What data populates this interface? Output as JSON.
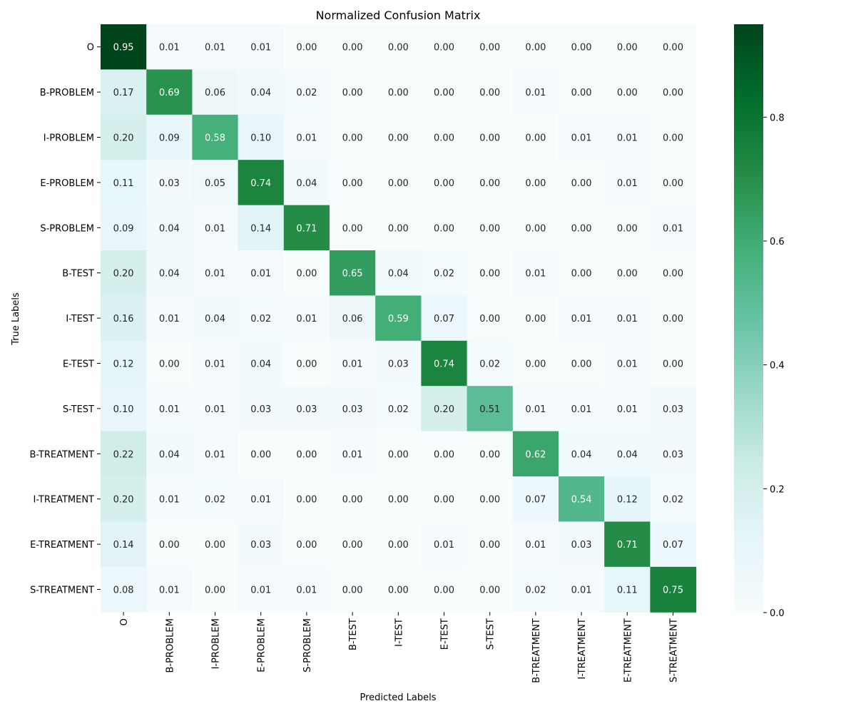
{
  "chart_data": {
    "type": "heatmap",
    "title": "Normalized Confusion Matrix",
    "xlabel": "Predicted Labels",
    "ylabel": "True Labels",
    "row_labels": [
      "O",
      "B-PROBLEM",
      "I-PROBLEM",
      "E-PROBLEM",
      "S-PROBLEM",
      "B-TEST",
      "I-TEST",
      "E-TEST",
      "S-TEST",
      "B-TREATMENT",
      "I-TREATMENT",
      "E-TREATMENT",
      "S-TREATMENT"
    ],
    "col_labels": [
      "O",
      "B-PROBLEM",
      "I-PROBLEM",
      "E-PROBLEM",
      "S-PROBLEM",
      "B-TEST",
      "I-TEST",
      "E-TEST",
      "S-TEST",
      "B-TREATMENT",
      "I-TREATMENT",
      "E-TREATMENT",
      "S-TREATMENT"
    ],
    "values": [
      [
        0.95,
        0.01,
        0.01,
        0.01,
        0.0,
        0.0,
        0.0,
        0.0,
        0.0,
        0.0,
        0.0,
        0.0,
        0.0
      ],
      [
        0.17,
        0.69,
        0.06,
        0.04,
        0.02,
        0.0,
        0.0,
        0.0,
        0.0,
        0.01,
        0.0,
        0.0,
        0.0
      ],
      [
        0.2,
        0.09,
        0.58,
        0.1,
        0.01,
        0.0,
        0.0,
        0.0,
        0.0,
        0.0,
        0.01,
        0.01,
        0.0
      ],
      [
        0.11,
        0.03,
        0.05,
        0.74,
        0.04,
        0.0,
        0.0,
        0.0,
        0.0,
        0.0,
        0.0,
        0.01,
        0.0
      ],
      [
        0.09,
        0.04,
        0.01,
        0.14,
        0.71,
        0.0,
        0.0,
        0.0,
        0.0,
        0.0,
        0.0,
        0.0,
        0.01
      ],
      [
        0.2,
        0.04,
        0.01,
        0.01,
        0.0,
        0.65,
        0.04,
        0.02,
        0.0,
        0.01,
        0.0,
        0.0,
        0.0
      ],
      [
        0.16,
        0.01,
        0.04,
        0.02,
        0.01,
        0.06,
        0.59,
        0.07,
        0.0,
        0.0,
        0.01,
        0.01,
        0.0
      ],
      [
        0.12,
        0.0,
        0.01,
        0.04,
        0.0,
        0.01,
        0.03,
        0.74,
        0.02,
        0.0,
        0.0,
        0.01,
        0.0
      ],
      [
        0.1,
        0.01,
        0.01,
        0.03,
        0.03,
        0.03,
        0.02,
        0.2,
        0.51,
        0.01,
        0.01,
        0.01,
        0.03
      ],
      [
        0.22,
        0.04,
        0.01,
        0.0,
        0.0,
        0.01,
        0.0,
        0.0,
        0.0,
        0.62,
        0.04,
        0.04,
        0.03
      ],
      [
        0.2,
        0.01,
        0.02,
        0.01,
        0.0,
        0.0,
        0.0,
        0.0,
        0.0,
        0.07,
        0.54,
        0.12,
        0.02
      ],
      [
        0.14,
        0.0,
        0.0,
        0.03,
        0.0,
        0.0,
        0.0,
        0.01,
        0.0,
        0.01,
        0.03,
        0.71,
        0.07
      ],
      [
        0.08,
        0.01,
        0.0,
        0.01,
        0.01,
        0.0,
        0.0,
        0.0,
        0.0,
        0.02,
        0.01,
        0.11,
        0.75
      ]
    ],
    "colormap": "BuGn",
    "colorbar": {
      "vmin": 0.0,
      "vmax": 0.95,
      "ticks": [
        0.0,
        0.2,
        0.4,
        0.6,
        0.8
      ],
      "tick_labels": [
        "0.0",
        "0.2",
        "0.4",
        "0.6",
        "0.8"
      ]
    },
    "value_format": "0.00",
    "annotations_on": true,
    "grid": false
  }
}
